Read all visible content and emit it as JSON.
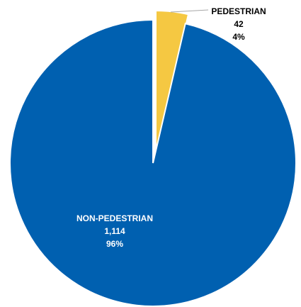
{
  "chart_data": {
    "type": "pie",
    "title": "",
    "slices": [
      {
        "label": "PEDESTRIAN",
        "value": 42,
        "percent": "4%",
        "value_text": "42",
        "color": "#F5C842"
      },
      {
        "label": "NON-PEDESTRIAN",
        "value": 1114,
        "percent": "96%",
        "value_text": "1,114",
        "color": "#0060B0"
      }
    ],
    "legend": "none"
  }
}
